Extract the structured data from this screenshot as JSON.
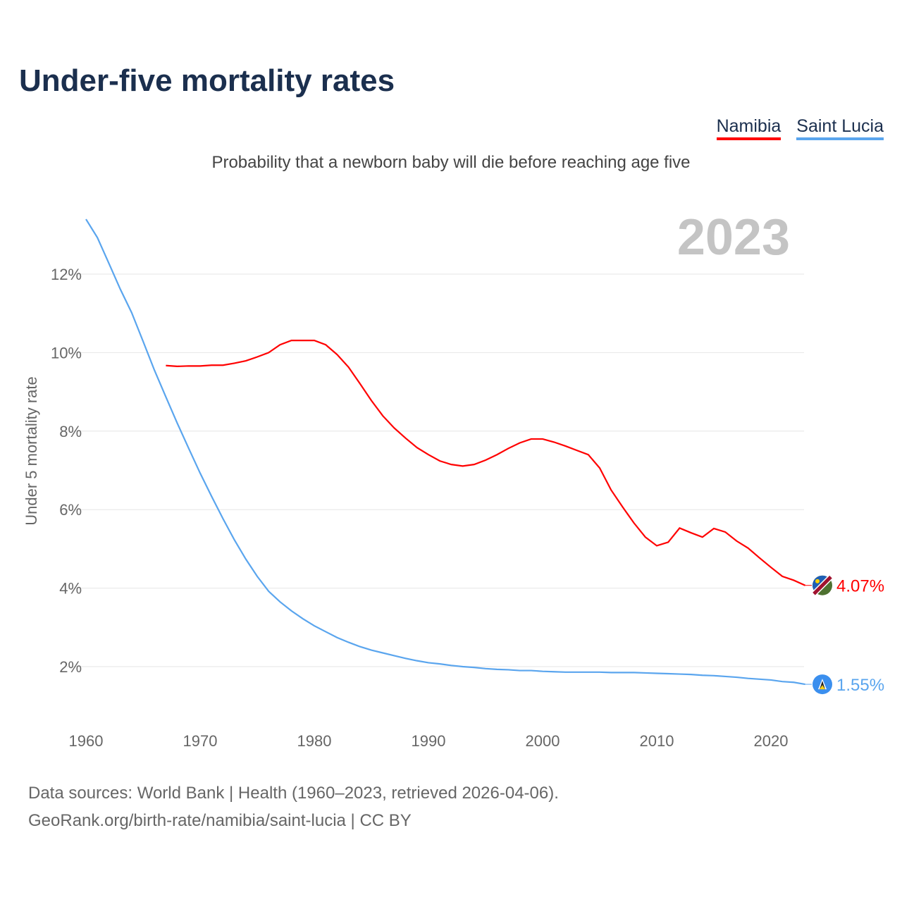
{
  "chart_data": {
    "type": "line",
    "title": "Under-five mortality rates",
    "subtitle": "Probability that a newborn baby will die before reaching age five",
    "ylabel": "Under 5 mortality rate",
    "xlabel": "",
    "year_label": "2023",
    "xlim": [
      1960,
      2023
    ],
    "ylim": [
      0,
      13.4
    ],
    "yticks": [
      2,
      4,
      6,
      8,
      10,
      12
    ],
    "ytick_labels": [
      "2%",
      "4%",
      "6%",
      "8%",
      "10%",
      "12%"
    ],
    "xticks": [
      1960,
      1970,
      1980,
      1990,
      2000,
      2010,
      2020
    ],
    "xtick_labels": [
      "1960",
      "1970",
      "1980",
      "1990",
      "2000",
      "2010",
      "2020"
    ],
    "grid": true,
    "legend_position": "top-right",
    "series": [
      {
        "name": "Namibia",
        "color": "#ff0000",
        "end_label": "4.07%",
        "start_year": 1967,
        "values": [
          9.67,
          9.65,
          9.66,
          9.66,
          9.68,
          9.68,
          9.73,
          9.79,
          9.89,
          10.0,
          10.2,
          10.31,
          10.31,
          10.31,
          10.2,
          9.95,
          9.63,
          9.21,
          8.78,
          8.39,
          8.08,
          7.82,
          7.58,
          7.4,
          7.24,
          7.15,
          7.11,
          7.15,
          7.26,
          7.4,
          7.56,
          7.7,
          7.8,
          7.8,
          7.72,
          7.62,
          7.51,
          7.4,
          7.06,
          6.5,
          6.07,
          5.66,
          5.3,
          5.08,
          5.17,
          5.53,
          5.41,
          5.3,
          5.52,
          5.43,
          5.2,
          5.02,
          4.77,
          4.53,
          4.3,
          4.2,
          4.07
        ]
      },
      {
        "name": "Saint Lucia",
        "color": "#5aa5ee",
        "end_label": "1.55%",
        "start_year": 1960,
        "values": [
          13.4,
          12.93,
          12.28,
          11.62,
          11.02,
          10.29,
          9.55,
          8.87,
          8.2,
          7.56,
          6.93,
          6.34,
          5.77,
          5.23,
          4.74,
          4.3,
          3.92,
          3.65,
          3.42,
          3.22,
          3.04,
          2.89,
          2.74,
          2.62,
          2.51,
          2.42,
          2.35,
          2.28,
          2.21,
          2.15,
          2.1,
          2.07,
          2.03,
          2.0,
          1.98,
          1.95,
          1.93,
          1.92,
          1.9,
          1.9,
          1.88,
          1.87,
          1.86,
          1.86,
          1.86,
          1.86,
          1.85,
          1.85,
          1.85,
          1.84,
          1.83,
          1.82,
          1.81,
          1.8,
          1.78,
          1.77,
          1.75,
          1.73,
          1.7,
          1.68,
          1.66,
          1.62,
          1.6,
          1.55
        ]
      }
    ]
  },
  "footer": {
    "line1": "Data sources: World Bank | Health (1960–2023, retrieved 2026-04-06).",
    "line2": "GeoRank.org/birth-rate/namibia/saint-lucia | CC BY"
  }
}
